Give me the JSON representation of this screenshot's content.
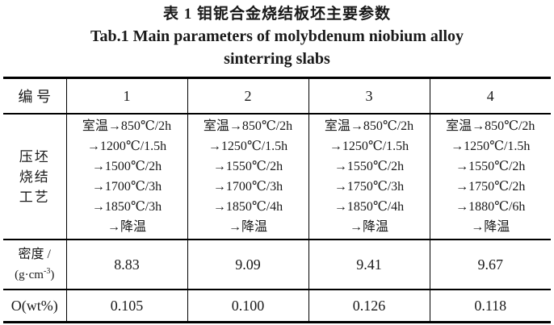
{
  "title": {
    "zh": "表 1  钼铌合金烧结板坯主要参数",
    "en_line1": "Tab.1  Main parameters of molybdenum niobium alloy",
    "en_line2": "sinterring slabs"
  },
  "table": {
    "header": {
      "label": "编 号",
      "columns": [
        "1",
        "2",
        "3",
        "4"
      ]
    },
    "process_row": {
      "label_lines": [
        "压坯",
        "烧结",
        "工艺"
      ],
      "cells": [
        [
          "室温→850℃/2h",
          "→1200℃/1.5h",
          "→1500℃/2h",
          "→1700℃/3h",
          "→1850℃/3h",
          "→降温"
        ],
        [
          "室温→850℃/2h",
          "→1250℃/1.5h",
          "→1550℃/2h",
          "→1700℃/3h",
          "→1850℃/4h",
          "→降温"
        ],
        [
          "室温→850℃/2h",
          "→1250℃/1.5h",
          "→1550℃/2h",
          "→1750℃/3h",
          "→1850℃/4h",
          "→降温"
        ],
        [
          "室温→850℃/2h",
          "→1250℃/1.5h",
          "→1550℃/2h",
          "→1750℃/2h",
          "→1880℃/6h",
          "→降温"
        ]
      ]
    },
    "density_row": {
      "label_line1": "密度 /",
      "unit_prefix": "(g·cm",
      "unit_sup": "-3",
      "unit_suffix": ")",
      "values": [
        "8.83",
        "9.09",
        "9.41",
        "9.67"
      ]
    },
    "oxygen_row": {
      "label": "O(wt%)",
      "values": [
        "0.105",
        "0.100",
        "0.126",
        "0.118"
      ]
    }
  },
  "colors": {
    "background": "#ffffff",
    "text": "#1a1a1a",
    "border": "#000000"
  }
}
